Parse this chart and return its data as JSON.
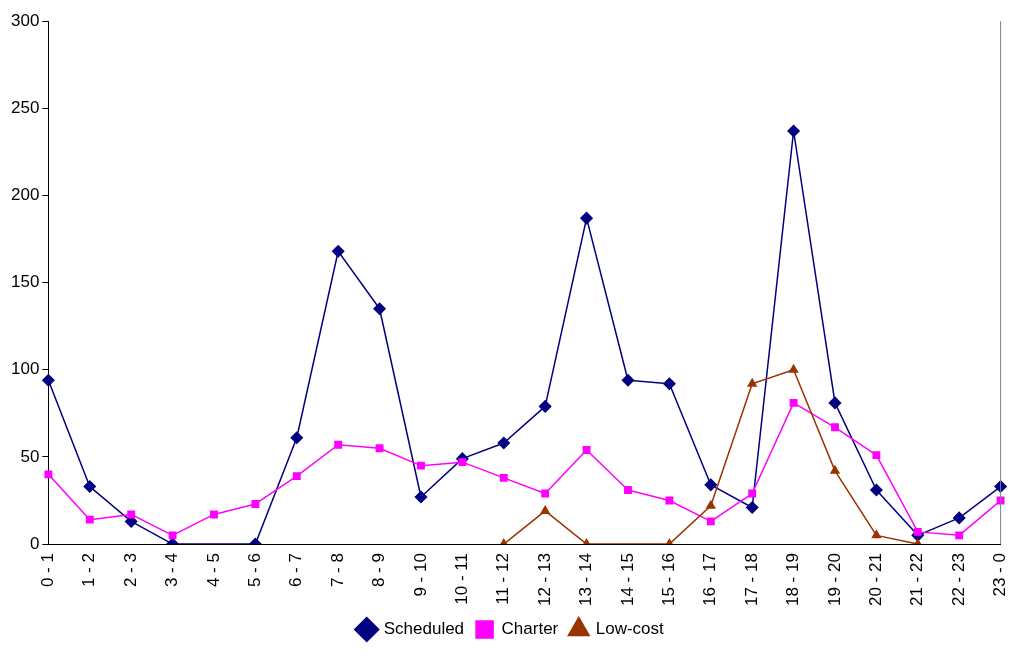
{
  "chart_data": {
    "type": "line",
    "categories": [
      "0 - 1",
      "1 - 2",
      "2 - 3",
      "3 - 4",
      "4 - 5",
      "5 - 6",
      "6 - 7",
      "7 - 8",
      "8 - 9",
      "9 - 10",
      "10 - 11",
      "11 - 12",
      "12 - 13",
      "13 - 14",
      "14 - 15",
      "15 - 16",
      "16 - 17",
      "17 - 18",
      "18 - 19",
      "19 - 20",
      "20 - 21",
      "21 - 22",
      "22 - 23",
      "23 - 0"
    ],
    "series": [
      {
        "name": "Scheduled",
        "color": "#000080",
        "marker": "diamond",
        "values": [
          94,
          33,
          13,
          0,
          null,
          0,
          61,
          168,
          135,
          27,
          49,
          58,
          79,
          187,
          94,
          92,
          34,
          21,
          237,
          81,
          31,
          5,
          15,
          33
        ]
      },
      {
        "name": "Charter",
        "color": "#ff00ff",
        "marker": "square",
        "values": [
          40,
          14,
          17,
          5,
          17,
          23,
          39,
          57,
          55,
          45,
          47,
          38,
          29,
          54,
          31,
          25,
          13,
          29,
          81,
          67,
          51,
          7,
          5,
          25
        ]
      },
      {
        "name": "Low-cost",
        "color": "#993300",
        "marker": "triangle",
        "values": [
          null,
          null,
          null,
          null,
          null,
          null,
          null,
          null,
          null,
          null,
          null,
          0,
          19,
          0,
          null,
          0,
          22,
          92,
          100,
          42,
          5,
          0,
          null,
          null
        ]
      }
    ],
    "ylim": [
      0,
      300
    ],
    "yticks": [
      0,
      50,
      100,
      150,
      200,
      250,
      300
    ],
    "grid": false,
    "legend": "bottom"
  }
}
